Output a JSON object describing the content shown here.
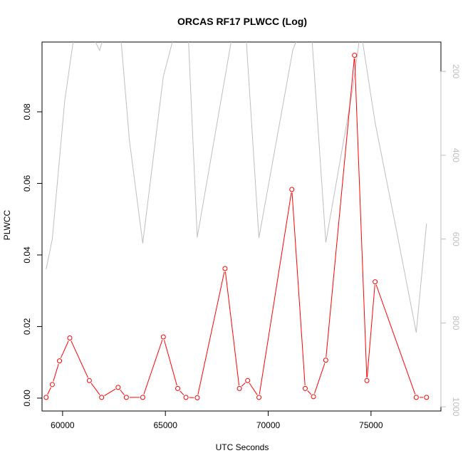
{
  "chart_data": {
    "type": "line",
    "title": "ORCAS RF17 PLWCC (Log)",
    "xlabel": "UTC Seconds",
    "ylabel": "PLWCC",
    "x_ticks": [
      60000,
      65000,
      70000,
      75000
    ],
    "x_tick_labels": [
      "60000",
      "65000",
      "70000",
      "75000"
    ],
    "xlim": [
      59000,
      78400
    ],
    "ylim": [
      -0.0036,
      0.0995
    ],
    "y_ticks": [
      0.0,
      0.02,
      0.04,
      0.06,
      0.08
    ],
    "y_tick_labels": [
      "0.00",
      "0.02",
      "0.04",
      "0.06",
      "0.08"
    ],
    "y2_axis": {
      "ticks": [
        200,
        400,
        600,
        800,
        1000
      ],
      "tick_labels": [
        "200",
        "400",
        "600",
        "800",
        "1000"
      ],
      "lim": [
        1010,
        130
      ],
      "direction": "reversed",
      "color": "#bebebe"
    },
    "series": [
      {
        "axis": "left",
        "color": "#ff0000",
        "marker": "open-circle",
        "segments": [
          {
            "x": [
              59200,
              59500,
              59850,
              60350,
              61300,
              61900,
              62700,
              63100,
              63900,
              64900,
              65600,
              66000,
              66550,
              67900,
              68600,
              69000,
              69550,
              71150,
              71800,
              72200,
              72800,
              74200,
              74800,
              75200,
              77200,
              77700
            ],
            "y": [
              0.0002,
              0.0038,
              0.0104,
              0.0168,
              0.0049,
              0.0002,
              0.003,
              0.0002,
              0.0002,
              0.0171,
              0.0027,
              0.0002,
              0.0001,
              0.0362,
              0.0027,
              0.0049,
              0.0002,
              0.0583,
              0.0027,
              0.0004,
              0.0106,
              0.0958,
              0.0049,
              0.0325,
              0.0002,
              0.0002
            ]
          }
        ]
      },
      {
        "axis": "right",
        "color": "#bebebe",
        "marker": "none",
        "segments": [
          {
            "x": [
              59200,
              59500,
              60100,
              60600,
              61300,
              61800,
              62100,
              62300
            ],
            "y": [
              672,
              600,
              271,
              100,
              100,
              150,
              100,
              100
            ]
          },
          {
            "x": [
              62800,
              63250,
              63900,
              64900,
              65500,
              66100,
              66550,
              68300,
              68900,
              69550,
              71200,
              71600,
              72100,
              72800,
              74100,
              74500,
              75200,
              76200,
              77200,
              77700
            ],
            "y": [
              100,
              365,
              610,
              212,
              100,
              100,
              596,
              100,
              100,
              597,
              148,
              100,
              100,
              608,
              244,
              100,
              322,
              570,
              823,
              563
            ]
          }
        ]
      }
    ],
    "grid": false,
    "legend": "none"
  }
}
